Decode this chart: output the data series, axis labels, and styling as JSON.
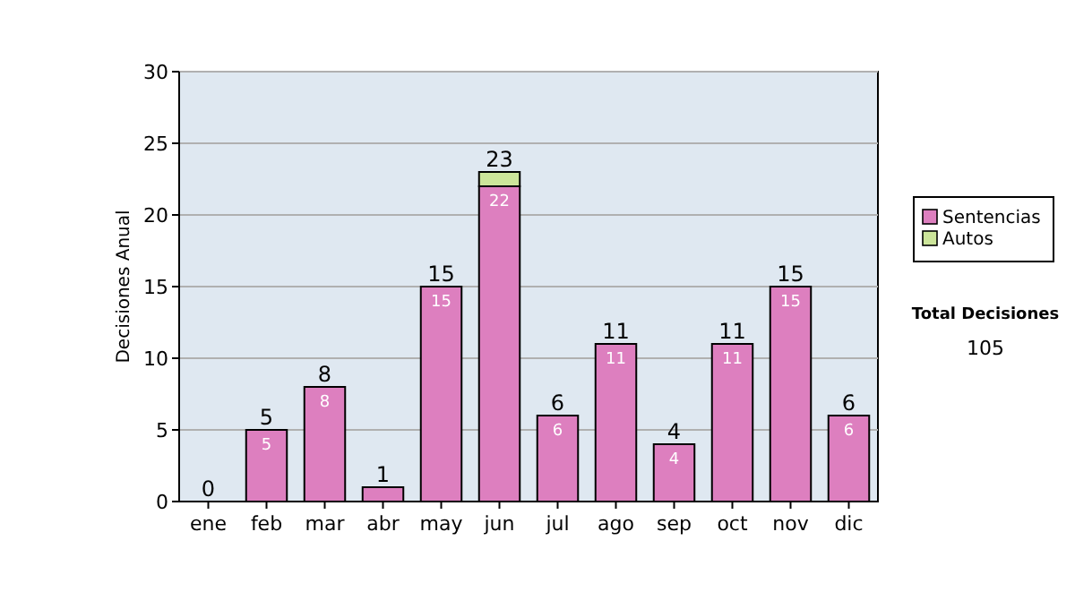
{
  "chart_data": {
    "type": "bar",
    "stacked": true,
    "ylabel": "Decisiones Anual",
    "categories": [
      "ene",
      "feb",
      "mar",
      "abr",
      "may",
      "jun",
      "jul",
      "ago",
      "sep",
      "oct",
      "nov",
      "dic"
    ],
    "series": [
      {
        "name": "Sentencias",
        "color": "#dd7fbf",
        "values": [
          0,
          5,
          8,
          1,
          15,
          22,
          6,
          11,
          4,
          11,
          15,
          6
        ],
        "value_labels": [
          null,
          "5",
          "8",
          null,
          "15",
          "22",
          "6",
          "11",
          "4",
          "11",
          "15",
          "6"
        ]
      },
      {
        "name": "Autos",
        "color": "#cce59a",
        "values": [
          0,
          0,
          0,
          0,
          0,
          1,
          0,
          0,
          0,
          0,
          0,
          0
        ]
      }
    ],
    "totals": [
      "0",
      "5",
      "8",
      "1",
      "15",
      "23",
      "6",
      "11",
      "4",
      "11",
      "15",
      "6"
    ],
    "ylim": [
      0,
      30
    ],
    "yticks": [
      0,
      5,
      10,
      15,
      20,
      25,
      30
    ],
    "grid": "y",
    "legend": "right",
    "annotations": [
      "Total Decisiones",
      "105"
    ]
  }
}
